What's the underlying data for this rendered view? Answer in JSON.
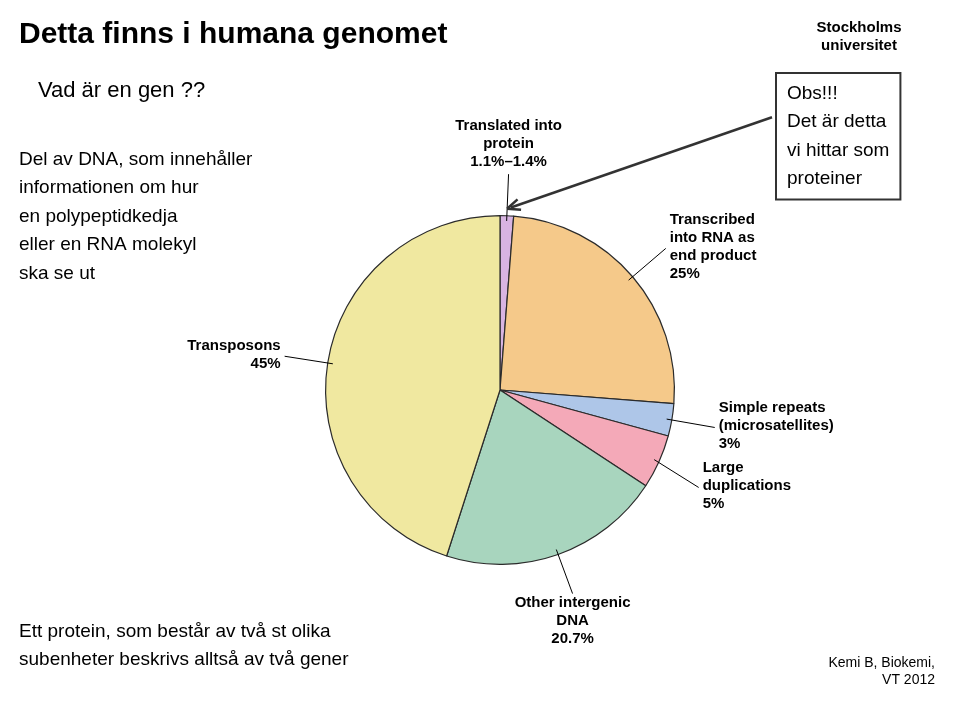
{
  "chart_data": {
    "type": "pie",
    "title": "Detta finns i humana genomet",
    "categories": [
      "Translated into\nprotein\n1.1%–1.4%",
      "Transcribed\ninto RNA as\nend product\n25%",
      "Simple repeats\n(microsatellites)\n3%",
      "Large\nduplications\n5%",
      "Other intergenic\nDNA\n20.7%",
      "Transposons\n45%"
    ],
    "values": [
      1.25,
      25.0,
      3.0,
      5.0,
      20.7,
      45.05
    ],
    "colors": [
      "#d8b4e2",
      "#f5c98a",
      "#aec6e8",
      "#f4a9b8",
      "#a8d5be",
      "#f0e8a0"
    ],
    "annotations": [
      "Vad är en gen ??",
      "Del av DNA, som innehåller\ninformationen om hur\nen polypeptidkedja\neller en RNA molekyl\nska se ut",
      "Ett protein, som består av två st olika\nsubenheter beskrivs alltså av två gener",
      "Obs!!!\nDet är detta\nvi hittar som\nproteiner",
      "Stockholms\nuniversitet",
      "Kemi B, Biokemi,\nVT 2012"
    ]
  }
}
